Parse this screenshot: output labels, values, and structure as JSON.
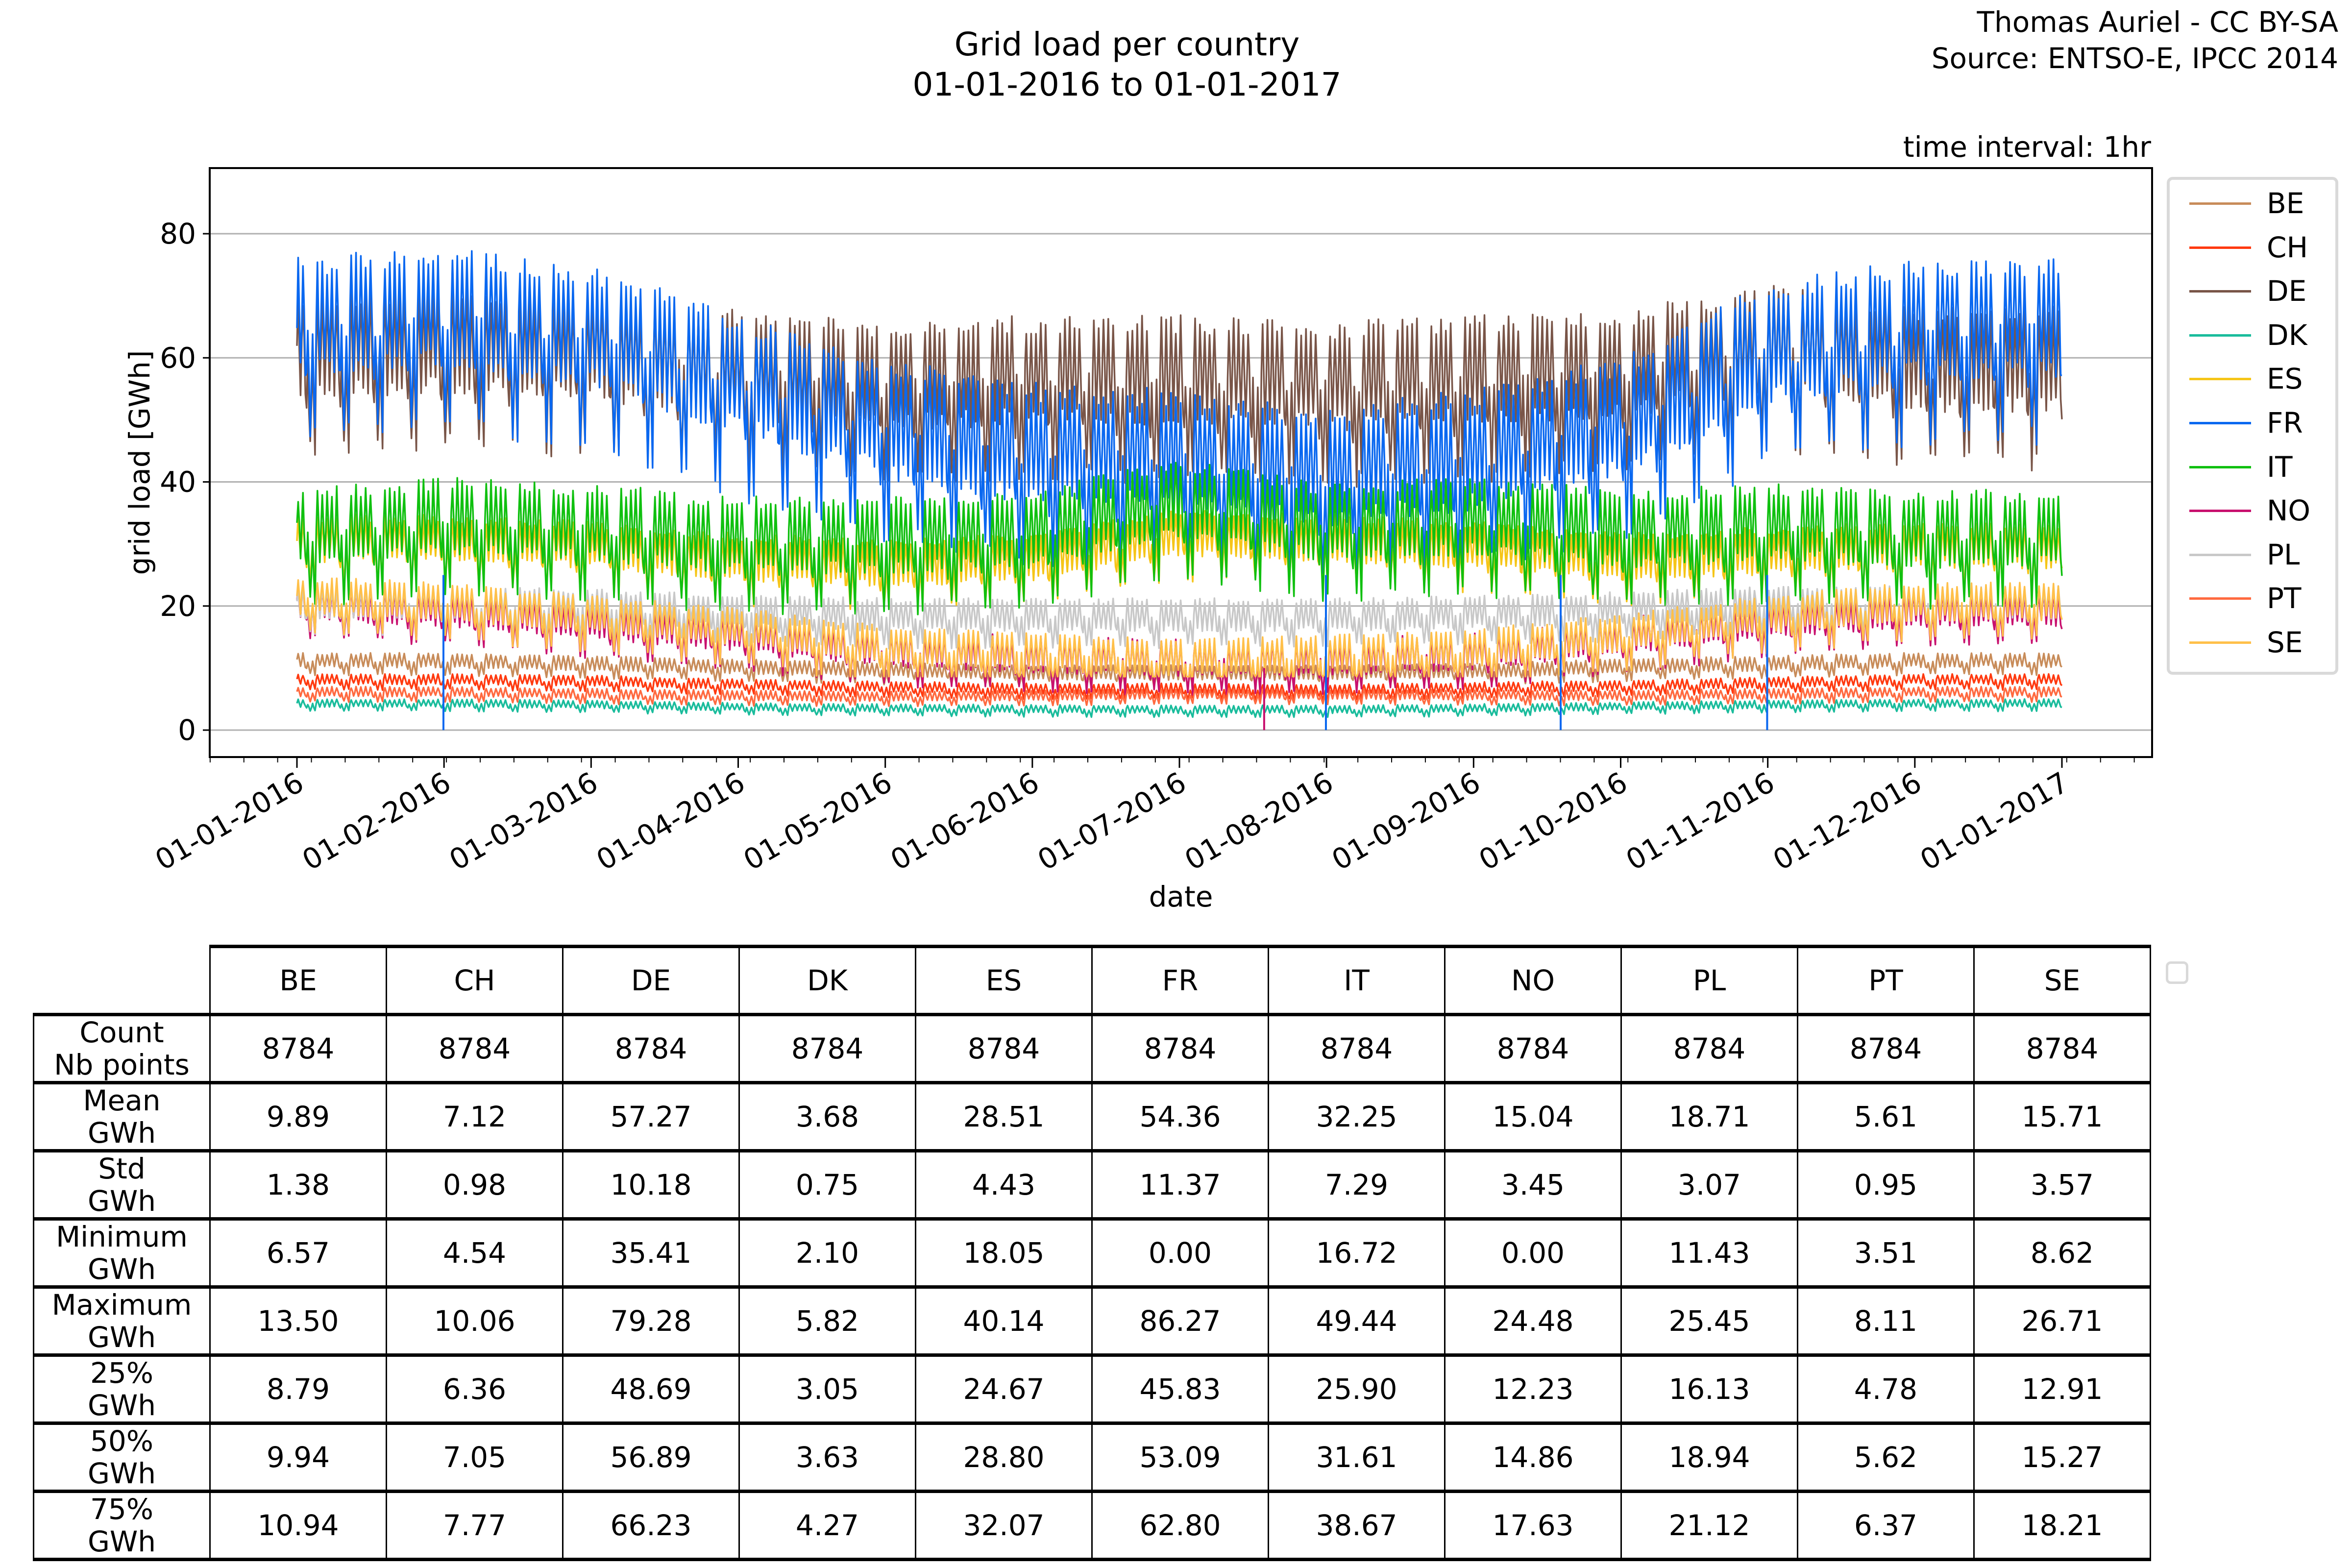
{
  "header": {
    "title_line1": "Grid load per country",
    "title_line2": "01-01-2016 to 01-01-2017",
    "credit_line1": "Thomas Auriel - CC BY-SA",
    "credit_line2": "Source: ENTSO-E, IPCC 2014",
    "interval": "time interval: 1hr"
  },
  "chart_data": {
    "type": "line",
    "title": "Grid load per country 01-01-2016 to 01-01-2017",
    "xlabel": "date",
    "ylabel": "grid load [GWh]",
    "ylim": [
      -4,
      90
    ],
    "yticks": [
      0,
      20,
      40,
      60,
      80
    ],
    "xticks": [
      "01-01-2016",
      "01-02-2016",
      "01-03-2016",
      "01-04-2016",
      "01-05-2016",
      "01-06-2016",
      "01-07-2016",
      "01-08-2016",
      "01-09-2016",
      "01-10-2016",
      "01-11-2016",
      "01-12-2016",
      "01-01-2017"
    ],
    "xrange": [
      "01-01-2016",
      "01-01-2017"
    ],
    "time_interval": "1hr",
    "grid": "horizontal",
    "legend_position": "right-outside",
    "series": [
      {
        "name": "BE",
        "color": "#c88c5a",
        "mean": 9.89,
        "std": 1.38,
        "min": 6.57,
        "max": 13.5,
        "q25": 8.79,
        "q50": 9.94,
        "q75": 10.94,
        "monthly_mean": [
          11,
          11,
          10.5,
          10,
          9.5,
          9,
          9,
          9,
          9.3,
          10,
          10.5,
          11
        ]
      },
      {
        "name": "CH",
        "color": "#ff3a10",
        "mean": 7.12,
        "std": 0.98,
        "min": 4.54,
        "max": 10.06,
        "q25": 6.36,
        "q50": 7.05,
        "q75": 7.77,
        "monthly_mean": [
          8,
          8,
          7.8,
          7.2,
          6.8,
          6.5,
          6.5,
          6.3,
          6.7,
          7,
          7.5,
          8
        ]
      },
      {
        "name": "DE",
        "color": "#795548",
        "mean": 57.27,
        "std": 10.18,
        "min": 35.41,
        "max": 79.28,
        "q25": 48.69,
        "q50": 56.89,
        "q75": 66.23,
        "monthly_mean": [
          60,
          61,
          60,
          57,
          55,
          56,
          56,
          55,
          56,
          57,
          61,
          58
        ]
      },
      {
        "name": "DK",
        "color": "#1abc9c",
        "mean": 3.68,
        "std": 0.75,
        "min": 2.1,
        "max": 5.82,
        "q25": 3.05,
        "q50": 3.63,
        "q75": 4.27,
        "monthly_mean": [
          4.2,
          4.2,
          4,
          3.6,
          3.4,
          3.3,
          3.2,
          3.2,
          3.4,
          3.7,
          4,
          4.2
        ]
      },
      {
        "name": "ES",
        "color": "#f5c518",
        "mean": 28.51,
        "std": 4.43,
        "min": 18.05,
        "max": 40.14,
        "q25": 24.67,
        "q50": 28.8,
        "q75": 32.07,
        "monthly_mean": [
          30,
          30,
          29,
          27,
          26,
          27,
          31,
          30,
          29,
          27,
          28,
          29
        ]
      },
      {
        "name": "FR",
        "color": "#0a68f0",
        "mean": 54.36,
        "std": 11.37,
        "min": 0.0,
        "max": 86.27,
        "q25": 45.83,
        "q50": 53.09,
        "q75": 62.8,
        "monthly_mean": [
          64,
          66,
          63,
          55,
          48,
          44,
          43,
          40,
          43,
          48,
          60,
          64
        ]
      },
      {
        "name": "IT",
        "color": "#10c010",
        "mean": 32.25,
        "std": 7.29,
        "min": 16.72,
        "max": 49.44,
        "q25": 25.9,
        "q50": 31.61,
        "q75": 38.67,
        "monthly_mean": [
          31,
          33,
          32,
          30,
          30,
          31,
          36,
          32,
          33,
          31,
          32,
          31
        ]
      },
      {
        "name": "NO",
        "color": "#c8106e",
        "mean": 15.04,
        "std": 3.45,
        "min": 0.0,
        "max": 24.48,
        "q25": 12.23,
        "q50": 14.86,
        "q75": 17.63,
        "monthly_mean": [
          20,
          19,
          17,
          15,
          12.5,
          11.5,
          11,
          11,
          12,
          14.5,
          17,
          19
        ]
      },
      {
        "name": "PL",
        "color": "#c8c8c8",
        "mean": 18.71,
        "std": 3.07,
        "min": 11.43,
        "max": 25.45,
        "q25": 16.13,
        "q50": 18.94,
        "q75": 21.12,
        "monthly_mean": [
          20,
          20,
          19.5,
          18.5,
          18,
          18,
          18,
          18,
          18.5,
          19,
          20,
          20
        ]
      },
      {
        "name": "PT",
        "color": "#ff6a40",
        "mean": 5.61,
        "std": 0.95,
        "min": 3.51,
        "max": 8.11,
        "q25": 4.78,
        "q50": 5.62,
        "q75": 6.37,
        "monthly_mean": [
          6,
          6,
          5.7,
          5.4,
          5.3,
          5.4,
          5.7,
          5.6,
          5.5,
          5.4,
          5.7,
          6
        ]
      },
      {
        "name": "SE",
        "color": "#ffc04a",
        "mean": 15.71,
        "std": 3.57,
        "min": 8.62,
        "max": 26.71,
        "q25": 12.91,
        "q50": 15.27,
        "q75": 18.21,
        "monthly_mean": [
          21,
          20,
          18,
          16,
          13,
          12,
          11,
          11.5,
          12.5,
          15,
          18,
          20
        ]
      }
    ]
  },
  "table": {
    "columns": [
      "BE",
      "CH",
      "DE",
      "DK",
      "ES",
      "FR",
      "IT",
      "NO",
      "PL",
      "PT",
      "SE"
    ],
    "rows": [
      {
        "label_line1": "Count",
        "label_line2": "Nb points",
        "values": [
          "8784",
          "8784",
          "8784",
          "8784",
          "8784",
          "8784",
          "8784",
          "8784",
          "8784",
          "8784",
          "8784"
        ]
      },
      {
        "label_line1": "Mean",
        "label_line2": "GWh",
        "values": [
          "9.89",
          "7.12",
          "57.27",
          "3.68",
          "28.51",
          "54.36",
          "32.25",
          "15.04",
          "18.71",
          "5.61",
          "15.71"
        ]
      },
      {
        "label_line1": "Std",
        "label_line2": "GWh",
        "values": [
          "1.38",
          "0.98",
          "10.18",
          "0.75",
          "4.43",
          "11.37",
          "7.29",
          "3.45",
          "3.07",
          "0.95",
          "3.57"
        ]
      },
      {
        "label_line1": "Minimum",
        "label_line2": "GWh",
        "values": [
          "6.57",
          "4.54",
          "35.41",
          "2.10",
          "18.05",
          "0.00",
          "16.72",
          "0.00",
          "11.43",
          "3.51",
          "8.62"
        ]
      },
      {
        "label_line1": "Maximum",
        "label_line2": "GWh",
        "values": [
          "13.50",
          "10.06",
          "79.28",
          "5.82",
          "40.14",
          "86.27",
          "49.44",
          "24.48",
          "25.45",
          "8.11",
          "26.71"
        ]
      },
      {
        "label_line1": "25%",
        "label_line2": "GWh",
        "values": [
          "8.79",
          "6.36",
          "48.69",
          "3.05",
          "24.67",
          "45.83",
          "25.90",
          "12.23",
          "16.13",
          "4.78",
          "12.91"
        ]
      },
      {
        "label_line1": "50%",
        "label_line2": "GWh",
        "values": [
          "9.94",
          "7.05",
          "56.89",
          "3.63",
          "28.80",
          "53.09",
          "31.61",
          "14.86",
          "18.94",
          "5.62",
          "15.27"
        ]
      },
      {
        "label_line1": "75%",
        "label_line2": "GWh",
        "values": [
          "10.94",
          "7.77",
          "66.23",
          "4.27",
          "32.07",
          "62.80",
          "38.67",
          "17.63",
          "21.12",
          "6.37",
          "18.21"
        ]
      }
    ]
  }
}
